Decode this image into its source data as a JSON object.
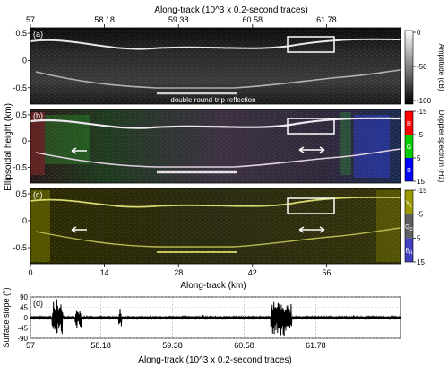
{
  "chart_data": [
    {
      "type": "heatmap",
      "panel": "(a)",
      "title": "Along-track (10^3 x 0.2-second traces)",
      "top_ticks": [
        "57",
        "58.18",
        "59.38",
        "60.58",
        "61.78"
      ],
      "ylabel": "Ellipsoidal height (km)",
      "yticks": [
        "0.5",
        "0",
        "-0.5"
      ],
      "ylim": [
        -0.8,
        0.6
      ],
      "colorbar": {
        "label": "Amplitude (dB)",
        "ticks": [
          "0",
          "-50",
          "-100"
        ],
        "range": [
          -100,
          0
        ],
        "colormap": "grayscale"
      },
      "annotations": [
        "double round-trip reflection"
      ]
    },
    {
      "type": "heatmap",
      "panel": "(b)",
      "yticks": [
        "0.5",
        "0",
        "-0.5"
      ],
      "ylim": [
        -0.8,
        0.6
      ],
      "colorbar": {
        "label": "Doppler spectrum (Hz)",
        "ticks": [
          "-15",
          "-5",
          "5",
          "15"
        ],
        "bands": [
          {
            "name": "R",
            "color": "#ff0000"
          },
          {
            "name": "G",
            "color": "#00cc00"
          },
          {
            "name": "B",
            "color": "#0000ff"
          }
        ]
      }
    },
    {
      "type": "heatmap",
      "panel": "(c)",
      "yticks": [
        "0.5",
        "0",
        "-0.5"
      ],
      "ylim": [
        -0.8,
        0.6
      ],
      "xlabel": "Along-track (km)",
      "xticks": [
        "0",
        "14",
        "28",
        "42",
        "56"
      ],
      "colorbar": {
        "ticks": [
          "-15",
          "-5",
          "5",
          "15"
        ],
        "bands": [
          {
            "name": "Y",
            "sub": "L",
            "color": "#9a9a00"
          },
          {
            "name": "G",
            "sub": "D",
            "color": "#606060"
          },
          {
            "name": "B",
            "sub": "R",
            "color": "#4040c0"
          }
        ]
      }
    },
    {
      "type": "line",
      "panel": "(d)",
      "ylabel": "Surface slope (°)",
      "yticks": [
        "90",
        "45",
        "0",
        "-45",
        "-90"
      ],
      "ylim": [
        -90,
        90
      ],
      "xlabel": "Along-track (10^3 x 0.2-second traces)",
      "xticks": [
        "57",
        "58.18",
        "59.38",
        "60.58",
        "61.78"
      ],
      "bursts": [
        {
          "x": 57.45,
          "amplitude": 85,
          "width": 0.18
        },
        {
          "x": 57.8,
          "amplitude": 55,
          "width": 0.1
        },
        {
          "x": 58.5,
          "amplitude": 50,
          "width": 0.05
        },
        {
          "x": 59.9,
          "amplitude": 20,
          "width": 0.04
        },
        {
          "x": 60.3,
          "amplitude": 15,
          "width": 0.04
        },
        {
          "x": 61.2,
          "amplitude": 90,
          "width": 0.35
        },
        {
          "x": 62.4,
          "amplitude": 12,
          "width": 0.05
        }
      ],
      "xlim": [
        57,
        63.2
      ]
    }
  ]
}
